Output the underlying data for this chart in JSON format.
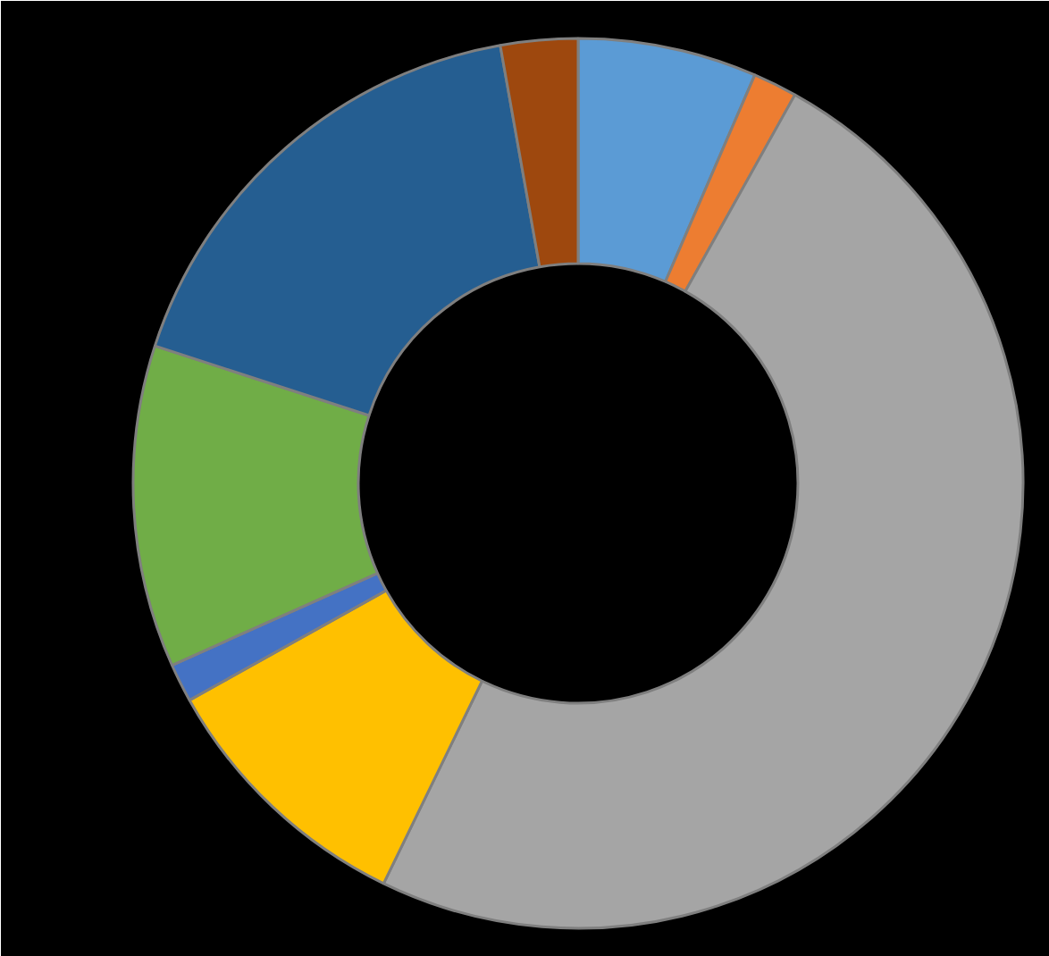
{
  "chart_data": {
    "type": "donut",
    "categories": [
      null,
      null,
      null,
      null,
      null,
      null,
      null,
      null
    ],
    "values": [
      6.5,
      1.6,
      49.1,
      9.7,
      1.4,
      11.7,
      17.2,
      2.8
    ],
    "colors": [
      "#5b9bd5",
      "#ed7d31",
      "#a5a5a5",
      "#ffc000",
      "#4472c4",
      "#70ad47",
      "#255e91",
      "#9e480e"
    ]
  }
}
